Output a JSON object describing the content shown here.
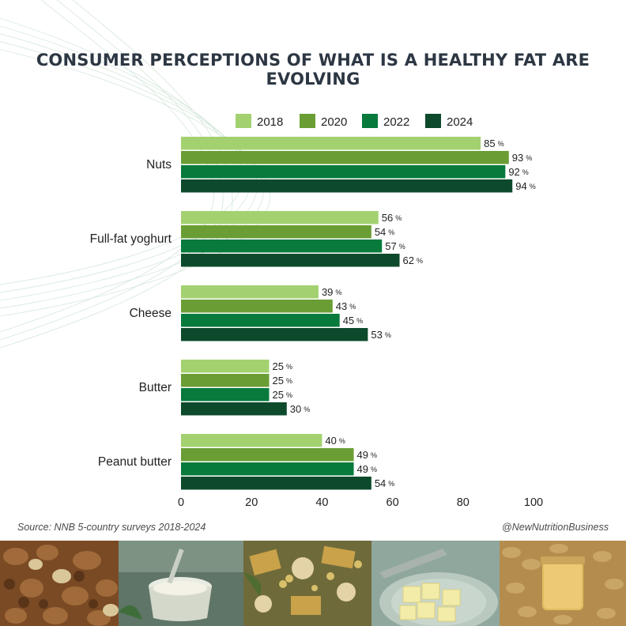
{
  "title": "CONSUMER PERCEPTIONS OF WHAT IS A HEALTHY FAT ARE EVOLVING",
  "source": "Source: NNB 5-country surveys 2018-2024",
  "handle": "@NewNutritionBusiness",
  "chart_data": {
    "type": "bar",
    "orientation": "horizontal",
    "title": "CONSUMER PERCEPTIONS OF WHAT IS A HEALTHY FAT ARE EVOLVING",
    "categories": [
      "Nuts",
      "Full-fat yoghurt",
      "Cheese",
      "Butter",
      "Peanut butter"
    ],
    "series": [
      {
        "name": "2018",
        "color": "#a3d170",
        "values": [
          85,
          56,
          39,
          25,
          40
        ]
      },
      {
        "name": "2020",
        "color": "#6a9e35",
        "values": [
          93,
          54,
          43,
          25,
          49
        ]
      },
      {
        "name": "2022",
        "color": "#077a3c",
        "values": [
          92,
          57,
          45,
          25,
          49
        ]
      },
      {
        "name": "2024",
        "color": "#0d4a2c",
        "values": [
          94,
          62,
          53,
          30,
          54
        ]
      }
    ],
    "value_suffix": "%",
    "xticks": [
      0,
      20,
      40,
      60,
      80,
      100
    ],
    "xlim": [
      0,
      100
    ],
    "grid": false,
    "legend_position": "top"
  },
  "photos": [
    "nuts-photo",
    "yoghurt-photo",
    "cheese-photo",
    "butter-photo",
    "peanut-butter-photo"
  ]
}
